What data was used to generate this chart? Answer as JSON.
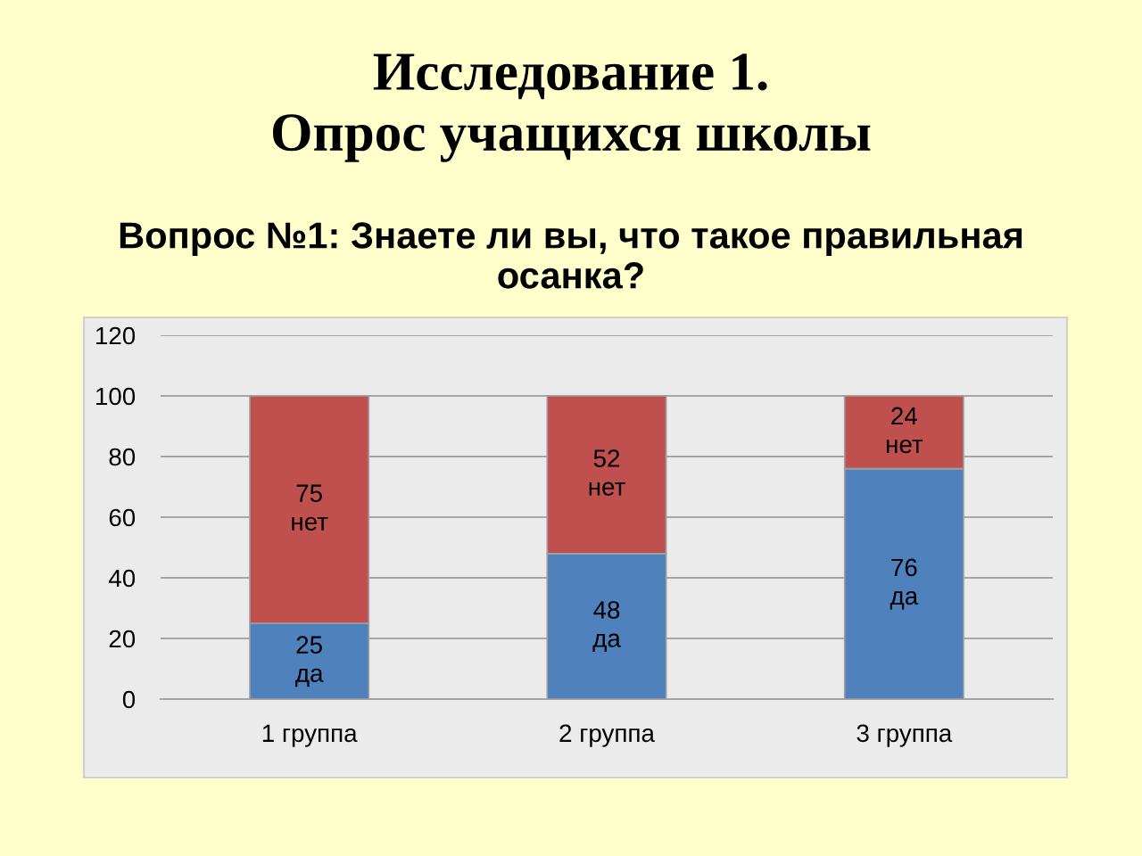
{
  "chart_data": {
    "type": "bar",
    "title": "Исследование 1.\nОпрос учащихся школы",
    "subtitle": "Вопрос №1: Знаете ли вы, что такое правильная\nосанка?",
    "categories": [
      "1 группа",
      "2 группа",
      "3 группа"
    ],
    "series": [
      {
        "name": "да",
        "color": "#4f81bd",
        "values": [
          25,
          48,
          76
        ]
      },
      {
        "name": "нет",
        "color": "#c0504d",
        "values": [
          75,
          52,
          24
        ]
      }
    ],
    "stacked": true,
    "data_labels": true,
    "ylim": [
      0,
      120
    ],
    "yticks": [
      0,
      20,
      40,
      60,
      80,
      100,
      120
    ],
    "grid": "y",
    "legend": false
  }
}
